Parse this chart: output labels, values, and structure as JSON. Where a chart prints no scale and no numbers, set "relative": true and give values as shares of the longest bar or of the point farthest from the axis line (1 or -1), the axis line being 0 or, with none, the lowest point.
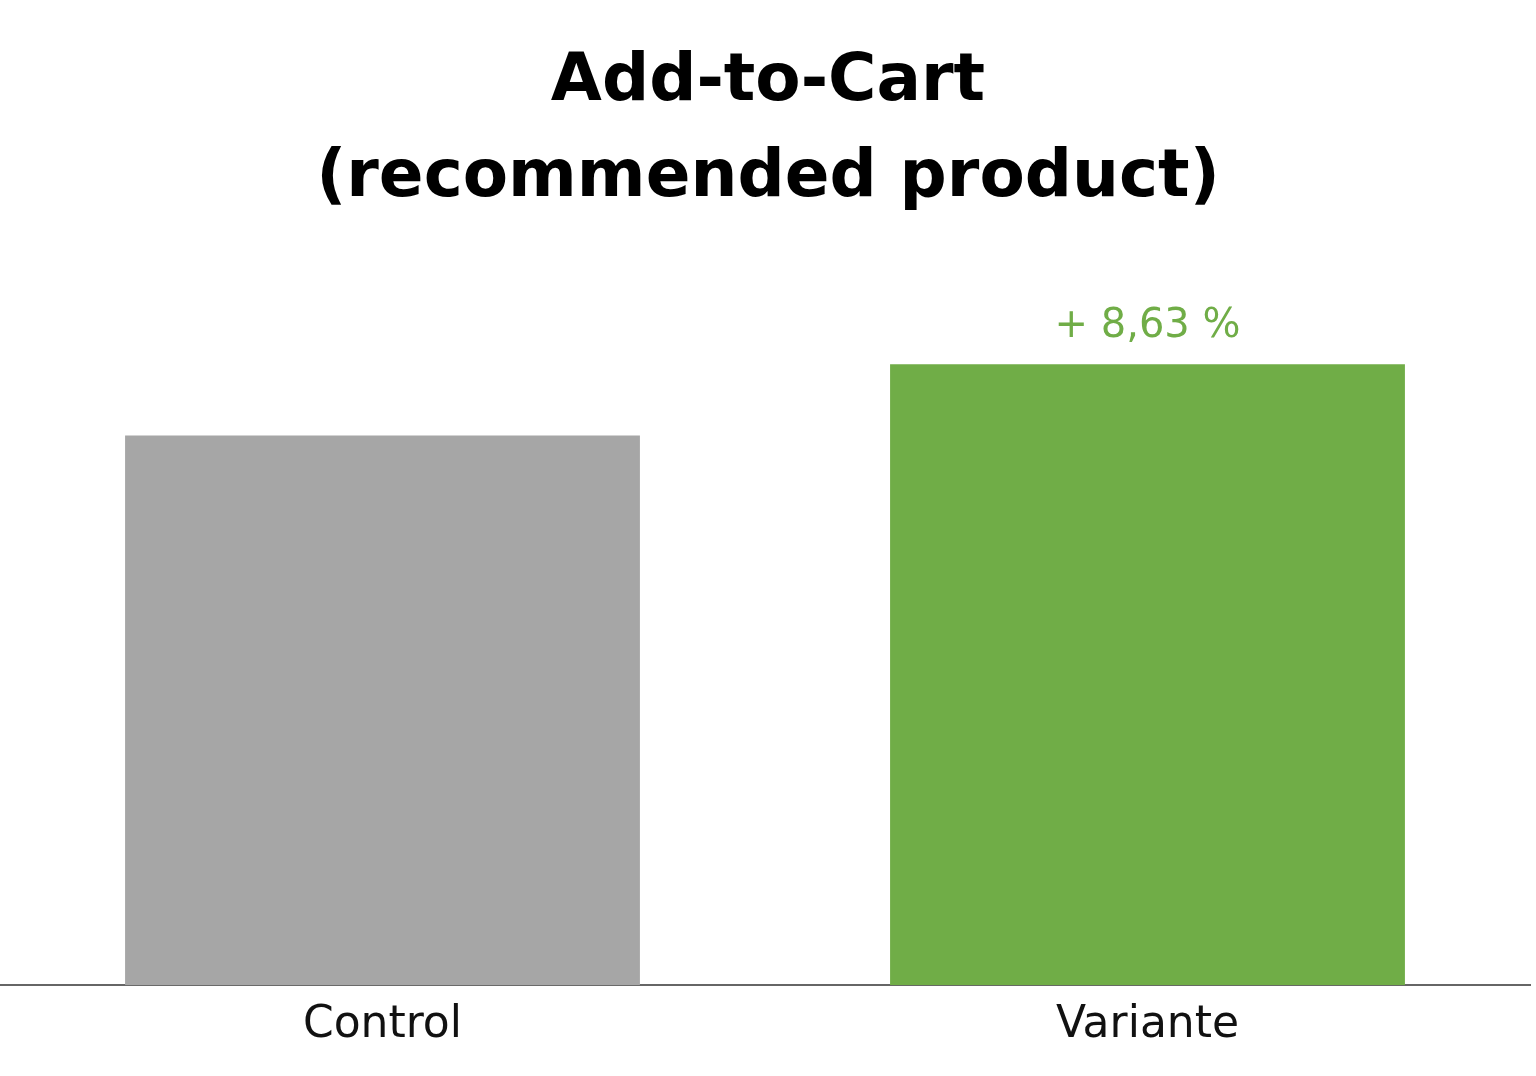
{
  "chart_data": {
    "type": "bar",
    "title": "Add-to-Cart (recommended product)",
    "categories": [
      "Control",
      "Variante"
    ],
    "values": [
      0.885,
      1
    ],
    "colors": [
      "#a6a6a6",
      "#70ad47"
    ],
    "relative": true,
    "grid": false,
    "legend": false,
    "annotations": [
      {
        "text": "+ 8,63 %",
        "x": "Variante",
        "y": 1
      }
    ]
  }
}
